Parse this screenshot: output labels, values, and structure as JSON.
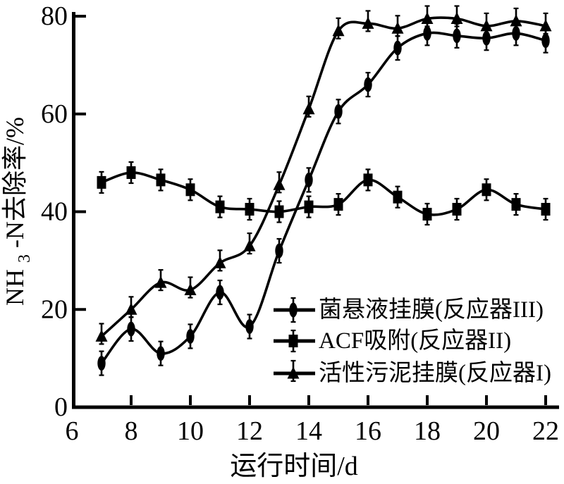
{
  "figure": {
    "background": "#ffffff",
    "ink_color": "#000000"
  },
  "chart_data": {
    "type": "line",
    "title": "",
    "xlabel": "运行时间/d",
    "ylabel": {
      "prefix": "NH",
      "sub": "3",
      "suffix": "-N去除率/%"
    },
    "xlim": [
      6,
      22
    ],
    "ylim": [
      0,
      80
    ],
    "x_ticks": [
      6,
      8,
      10,
      12,
      14,
      16,
      18,
      20,
      22
    ],
    "y_ticks": [
      0,
      20,
      40,
      60,
      80
    ],
    "grid": false,
    "legend_position": "inside-middle-right",
    "x": [
      7,
      8,
      9,
      10,
      11,
      12,
      13,
      14,
      15,
      16,
      17,
      18,
      19,
      20,
      21,
      22
    ],
    "series": [
      {
        "name": "菌悬液挂膜(反应器III)",
        "marker": "ellipse",
        "values": [
          9,
          16,
          11,
          14.5,
          23.5,
          16.5,
          32,
          46.5,
          60.5,
          66,
          73.5,
          76.5,
          76,
          75.5,
          76.5,
          75
        ]
      },
      {
        "name": "ACF吸附(反应器II)",
        "marker": "square",
        "values": [
          46,
          48,
          46.5,
          44.5,
          41,
          40.5,
          40,
          41,
          41.5,
          46.5,
          43,
          39.5,
          40.5,
          44.5,
          41.5,
          40.5
        ]
      },
      {
        "name": "活性污泥挂膜(反应器I)",
        "marker": "triangle",
        "values": [
          14.5,
          20,
          25.5,
          24,
          29.5,
          33,
          45.5,
          61,
          77,
          78.5,
          77.5,
          79.5,
          79.5,
          78,
          79,
          78
        ]
      }
    ]
  }
}
